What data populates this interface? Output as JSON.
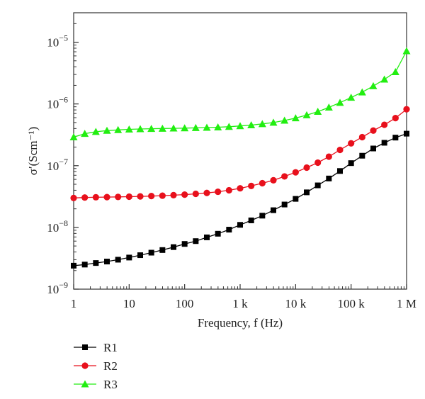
{
  "chart_data": {
    "type": "line",
    "xscale": "log",
    "yscale": "log",
    "xlim": [
      1,
      1000000
    ],
    "ylim": [
      1e-09,
      3e-05
    ],
    "xlabel": "Frequency, f (Hz)",
    "ylabel": "σ′(Scm⁻¹)",
    "grid": false,
    "legend_position": "bottom-left",
    "x_tick_labels": [
      "1",
      "10",
      "100",
      "1 k",
      "10 k",
      "100 k",
      "1 M"
    ],
    "x_tick_values": [
      1,
      10,
      100,
      1000,
      10000,
      100000,
      1000000
    ],
    "y_tick_values": [
      1e-09,
      1e-08,
      1e-07,
      1e-06,
      1e-05
    ],
    "y_tick_base": "10",
    "y_tick_exponents": [
      "−9",
      "−8",
      "−7",
      "−6",
      "−5"
    ],
    "x": [
      1,
      1.585,
      2.512,
      3.981,
      6.31,
      10,
      15.85,
      25.12,
      39.81,
      63.1,
      100,
      158.5,
      251.2,
      398.1,
      631,
      1000,
      1585,
      2512,
      3981,
      6310,
      10000,
      15850,
      25120,
      39810,
      63100,
      100000,
      158500,
      251200,
      398100,
      631000,
      1000000
    ],
    "series": [
      {
        "name": "R1",
        "color": "#000000",
        "marker": "square",
        "values": [
          2.4e-09,
          2.5e-09,
          2.65e-09,
          2.8e-09,
          3e-09,
          3.25e-09,
          3.55e-09,
          3.9e-09,
          4.3e-09,
          4.8e-09,
          5.4e-09,
          6e-09,
          6.9e-09,
          7.9e-09,
          9.2e-09,
          1.1e-08,
          1.3e-08,
          1.55e-08,
          1.9e-08,
          2.35e-08,
          2.9e-08,
          3.7e-08,
          4.8e-08,
          6.2e-08,
          8.2e-08,
          1.1e-07,
          1.45e-07,
          1.9e-07,
          2.35e-07,
          2.85e-07,
          3.3e-07
        ]
      },
      {
        "name": "R2",
        "color": "#e8101c",
        "marker": "circle",
        "values": [
          3e-08,
          3.05e-08,
          3.08e-08,
          3.1e-08,
          3.12e-08,
          3.15e-08,
          3.18e-08,
          3.22e-08,
          3.27e-08,
          3.33e-08,
          3.4e-08,
          3.5e-08,
          3.62e-08,
          3.78e-08,
          4e-08,
          4.3e-08,
          4.7e-08,
          5.2e-08,
          5.8e-08,
          6.7e-08,
          7.8e-08,
          9.3e-08,
          1.12e-07,
          1.4e-07,
          1.8e-07,
          2.3e-07,
          2.9e-07,
          3.7e-07,
          4.6e-07,
          5.9e-07,
          8.2e-07
        ]
      },
      {
        "name": "R3",
        "color": "#22ee11",
        "marker": "triangle",
        "values": [
          2.9e-07,
          3.3e-07,
          3.55e-07,
          3.7e-07,
          3.8e-07,
          3.88e-07,
          3.93e-07,
          3.97e-07,
          4e-07,
          4.03e-07,
          4.06e-07,
          4.1e-07,
          4.15e-07,
          4.2e-07,
          4.28e-07,
          4.4e-07,
          4.55e-07,
          4.75e-07,
          5e-07,
          5.4e-07,
          5.9e-07,
          6.6e-07,
          7.5e-07,
          8.8e-07,
          1.05e-06,
          1.27e-06,
          1.55e-06,
          1.95e-06,
          2.5e-06,
          3.3e-06,
          7.2e-06
        ]
      }
    ]
  }
}
